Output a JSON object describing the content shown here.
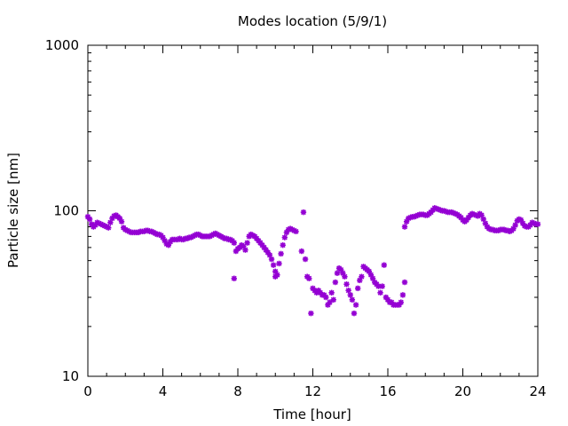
{
  "chart_data": {
    "type": "scatter",
    "title": "Modes location (5/9/1)",
    "xlabel": "Time [hour]",
    "ylabel": "Particle size [nm]",
    "xlim": [
      0,
      24
    ],
    "ylim": [
      10,
      1000
    ],
    "yscale": "log",
    "grid": false,
    "legend": "none",
    "x_ticks": [
      0,
      4,
      8,
      12,
      16,
      20,
      24
    ],
    "x_tick_labels": [
      "0",
      "4",
      "8",
      "12",
      "16",
      "20",
      "24"
    ],
    "y_ticks": [
      10,
      100,
      1000
    ],
    "y_tick_labels": [
      "10",
      "100",
      "1000"
    ],
    "colors": {
      "points": "#9400d3",
      "axes": "#000000"
    },
    "points": [
      [
        0.0,
        92
      ],
      [
        0.1,
        89
      ],
      [
        0.2,
        83
      ],
      [
        0.3,
        80
      ],
      [
        0.4,
        82
      ],
      [
        0.5,
        85
      ],
      [
        0.6,
        84
      ],
      [
        0.7,
        83
      ],
      [
        0.8,
        82
      ],
      [
        0.9,
        81
      ],
      [
        1.0,
        80
      ],
      [
        1.1,
        79
      ],
      [
        1.2,
        85
      ],
      [
        1.3,
        90
      ],
      [
        1.4,
        93
      ],
      [
        1.5,
        94
      ],
      [
        1.6,
        92
      ],
      [
        1.7,
        90
      ],
      [
        1.8,
        86
      ],
      [
        1.9,
        79
      ],
      [
        2.0,
        77
      ],
      [
        2.1,
        76
      ],
      [
        2.2,
        75
      ],
      [
        2.3,
        74
      ],
      [
        2.4,
        74
      ],
      [
        2.5,
        74
      ],
      [
        2.6,
        74
      ],
      [
        2.7,
        74
      ],
      [
        2.8,
        75
      ],
      [
        2.9,
        75
      ],
      [
        3.0,
        75
      ],
      [
        3.1,
        76
      ],
      [
        3.2,
        76
      ],
      [
        3.3,
        75
      ],
      [
        3.4,
        75
      ],
      [
        3.5,
        74
      ],
      [
        3.6,
        73
      ],
      [
        3.7,
        72
      ],
      [
        3.8,
        72
      ],
      [
        3.9,
        71
      ],
      [
        4.0,
        69
      ],
      [
        4.1,
        66
      ],
      [
        4.2,
        63
      ],
      [
        4.3,
        62
      ],
      [
        4.4,
        65
      ],
      [
        4.5,
        67
      ],
      [
        4.6,
        67
      ],
      [
        4.7,
        67
      ],
      [
        4.8,
        67
      ],
      [
        4.9,
        68
      ],
      [
        5.0,
        67
      ],
      [
        5.1,
        67
      ],
      [
        5.2,
        68
      ],
      [
        5.3,
        68
      ],
      [
        5.4,
        69
      ],
      [
        5.5,
        69
      ],
      [
        5.6,
        70
      ],
      [
        5.7,
        71
      ],
      [
        5.8,
        72
      ],
      [
        5.9,
        72
      ],
      [
        6.0,
        71
      ],
      [
        6.1,
        70
      ],
      [
        6.2,
        70
      ],
      [
        6.3,
        70
      ],
      [
        6.4,
        70
      ],
      [
        6.5,
        70
      ],
      [
        6.6,
        71
      ],
      [
        6.7,
        72
      ],
      [
        6.8,
        73
      ],
      [
        6.9,
        72
      ],
      [
        7.0,
        71
      ],
      [
        7.1,
        70
      ],
      [
        7.2,
        69
      ],
      [
        7.3,
        68
      ],
      [
        7.4,
        68
      ],
      [
        7.5,
        67
      ],
      [
        7.6,
        67
      ],
      [
        7.7,
        66
      ],
      [
        7.8,
        64
      ],
      [
        7.8,
        39
      ],
      [
        7.9,
        57
      ],
      [
        8.0,
        59
      ],
      [
        8.1,
        60
      ],
      [
        8.2,
        62
      ],
      [
        8.3,
        61
      ],
      [
        8.4,
        58
      ],
      [
        8.5,
        64
      ],
      [
        8.6,
        70
      ],
      [
        8.7,
        72
      ],
      [
        8.8,
        71
      ],
      [
        8.9,
        70
      ],
      [
        9.0,
        68
      ],
      [
        9.1,
        66
      ],
      [
        9.2,
        64
      ],
      [
        9.3,
        62
      ],
      [
        9.4,
        60
      ],
      [
        9.5,
        58
      ],
      [
        9.6,
        56
      ],
      [
        9.7,
        54
      ],
      [
        9.8,
        51
      ],
      [
        9.9,
        47
      ],
      [
        10.0,
        43
      ],
      [
        10.0,
        40
      ],
      [
        10.1,
        41
      ],
      [
        10.2,
        48
      ],
      [
        10.3,
        55
      ],
      [
        10.4,
        62
      ],
      [
        10.5,
        69
      ],
      [
        10.6,
        74
      ],
      [
        10.7,
        77
      ],
      [
        10.8,
        78
      ],
      [
        10.9,
        77
      ],
      [
        11.0,
        76
      ],
      [
        11.1,
        75
      ],
      [
        11.4,
        57
      ],
      [
        11.5,
        98
      ],
      [
        11.6,
        51
      ],
      [
        11.7,
        40
      ],
      [
        11.8,
        39
      ],
      [
        11.9,
        24
      ],
      [
        12.0,
        34
      ],
      [
        12.1,
        33
      ],
      [
        12.2,
        32
      ],
      [
        12.3,
        33
      ],
      [
        12.4,
        32
      ],
      [
        12.5,
        31
      ],
      [
        12.6,
        31
      ],
      [
        12.7,
        30
      ],
      [
        12.8,
        27
      ],
      [
        12.9,
        28
      ],
      [
        13.0,
        32
      ],
      [
        13.1,
        29
      ],
      [
        13.2,
        37
      ],
      [
        13.3,
        42
      ],
      [
        13.4,
        45
      ],
      [
        13.5,
        44
      ],
      [
        13.6,
        42
      ],
      [
        13.7,
        40
      ],
      [
        13.8,
        36
      ],
      [
        13.9,
        33
      ],
      [
        14.0,
        31
      ],
      [
        14.1,
        29
      ],
      [
        14.2,
        24
      ],
      [
        14.3,
        27
      ],
      [
        14.4,
        34
      ],
      [
        14.5,
        38
      ],
      [
        14.6,
        40
      ],
      [
        14.7,
        46
      ],
      [
        14.8,
        45
      ],
      [
        14.9,
        44
      ],
      [
        15.0,
        43
      ],
      [
        15.1,
        41
      ],
      [
        15.2,
        39
      ],
      [
        15.3,
        37
      ],
      [
        15.4,
        36
      ],
      [
        15.5,
        35
      ],
      [
        15.6,
        32
      ],
      [
        15.7,
        35
      ],
      [
        15.8,
        47
      ],
      [
        15.9,
        30
      ],
      [
        16.0,
        29
      ],
      [
        16.1,
        28
      ],
      [
        16.2,
        28
      ],
      [
        16.3,
        27
      ],
      [
        16.4,
        27
      ],
      [
        16.5,
        27
      ],
      [
        16.6,
        27
      ],
      [
        16.7,
        28
      ],
      [
        16.8,
        31
      ],
      [
        16.9,
        37
      ],
      [
        16.9,
        80
      ],
      [
        17.0,
        86
      ],
      [
        17.1,
        90
      ],
      [
        17.2,
        91
      ],
      [
        17.3,
        92
      ],
      [
        17.4,
        92
      ],
      [
        17.5,
        93
      ],
      [
        17.6,
        94
      ],
      [
        17.7,
        95
      ],
      [
        17.8,
        95
      ],
      [
        17.9,
        95
      ],
      [
        18.0,
        94
      ],
      [
        18.1,
        94
      ],
      [
        18.2,
        96
      ],
      [
        18.3,
        98
      ],
      [
        18.4,
        101
      ],
      [
        18.5,
        104
      ],
      [
        18.6,
        103
      ],
      [
        18.7,
        102
      ],
      [
        18.8,
        101
      ],
      [
        18.9,
        100
      ],
      [
        19.0,
        100
      ],
      [
        19.1,
        99
      ],
      [
        19.2,
        98
      ],
      [
        19.3,
        98
      ],
      [
        19.4,
        98
      ],
      [
        19.5,
        97
      ],
      [
        19.6,
        96
      ],
      [
        19.7,
        95
      ],
      [
        19.8,
        93
      ],
      [
        19.9,
        91
      ],
      [
        20.0,
        88
      ],
      [
        20.1,
        86
      ],
      [
        20.2,
        88
      ],
      [
        20.3,
        91
      ],
      [
        20.4,
        94
      ],
      [
        20.5,
        96
      ],
      [
        20.6,
        95
      ],
      [
        20.7,
        94
      ],
      [
        20.8,
        93
      ],
      [
        20.9,
        96
      ],
      [
        21.0,
        94
      ],
      [
        21.1,
        89
      ],
      [
        21.2,
        84
      ],
      [
        21.3,
        80
      ],
      [
        21.4,
        78
      ],
      [
        21.5,
        77
      ],
      [
        21.6,
        77
      ],
      [
        21.7,
        76
      ],
      [
        21.8,
        76
      ],
      [
        21.9,
        76
      ],
      [
        22.0,
        77
      ],
      [
        22.1,
        77
      ],
      [
        22.2,
        77
      ],
      [
        22.3,
        76
      ],
      [
        22.4,
        76
      ],
      [
        22.5,
        75
      ],
      [
        22.6,
        76
      ],
      [
        22.7,
        78
      ],
      [
        22.8,
        82
      ],
      [
        22.9,
        87
      ],
      [
        23.0,
        89
      ],
      [
        23.1,
        88
      ],
      [
        23.2,
        84
      ],
      [
        23.3,
        81
      ],
      [
        23.4,
        80
      ],
      [
        23.5,
        80
      ],
      [
        23.6,
        82
      ],
      [
        23.7,
        85
      ],
      [
        23.8,
        84
      ],
      [
        23.9,
        83
      ],
      [
        24.0,
        83
      ]
    ]
  }
}
